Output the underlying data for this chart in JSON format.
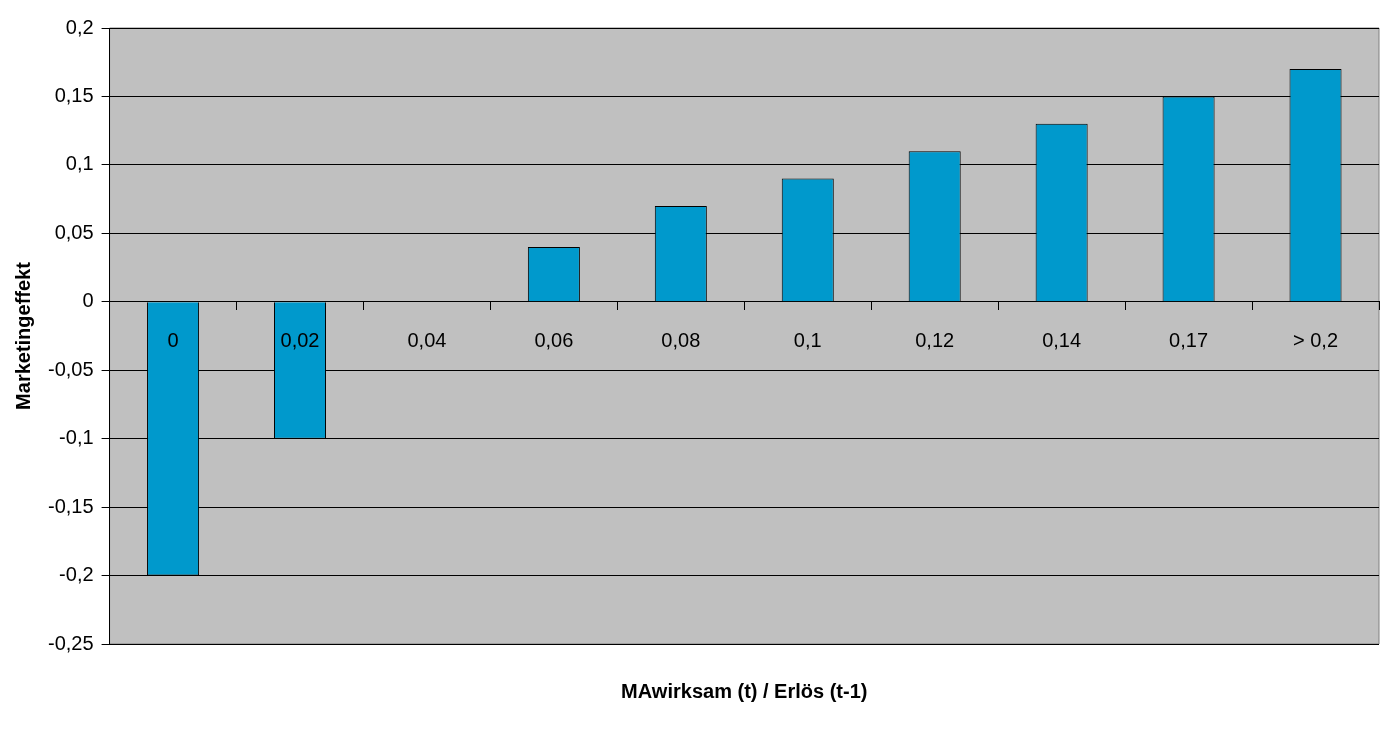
{
  "chart_data": {
    "type": "bar",
    "xlabel": "MAwirksam (t) / Erlös (t-1)",
    "ylabel": "Marketingeffekt",
    "categories": [
      "0",
      "0,02",
      "0,04",
      "0,06",
      "0,08",
      "0,1",
      "0,12",
      "0,14",
      "0,17",
      "> 0,2"
    ],
    "series": [
      {
        "color": "#0099cc",
        "values": [
          -0.2,
          -0.1,
          0,
          0.04,
          0.07,
          0.09,
          0.11,
          0.13,
          0.15,
          0.17
        ]
      }
    ],
    "ylim": [
      -0.25,
      0.2
    ],
    "yticks": [
      {
        "value": -0.25,
        "label": "-0,25"
      },
      {
        "value": -0.2,
        "label": "-0,2"
      },
      {
        "value": -0.15,
        "label": "-0,15"
      },
      {
        "value": -0.1,
        "label": "-0,1"
      },
      {
        "value": -0.05,
        "label": "-0,05"
      },
      0,
      {
        "value": 0.05,
        "label": "0,05"
      },
      {
        "value": 0.1,
        "label": "0,1"
      },
      {
        "value": 0.15,
        "label": "0,15"
      },
      {
        "value": 0.2,
        "label": "0,2"
      }
    ],
    "grid": "y",
    "legend": false
  }
}
